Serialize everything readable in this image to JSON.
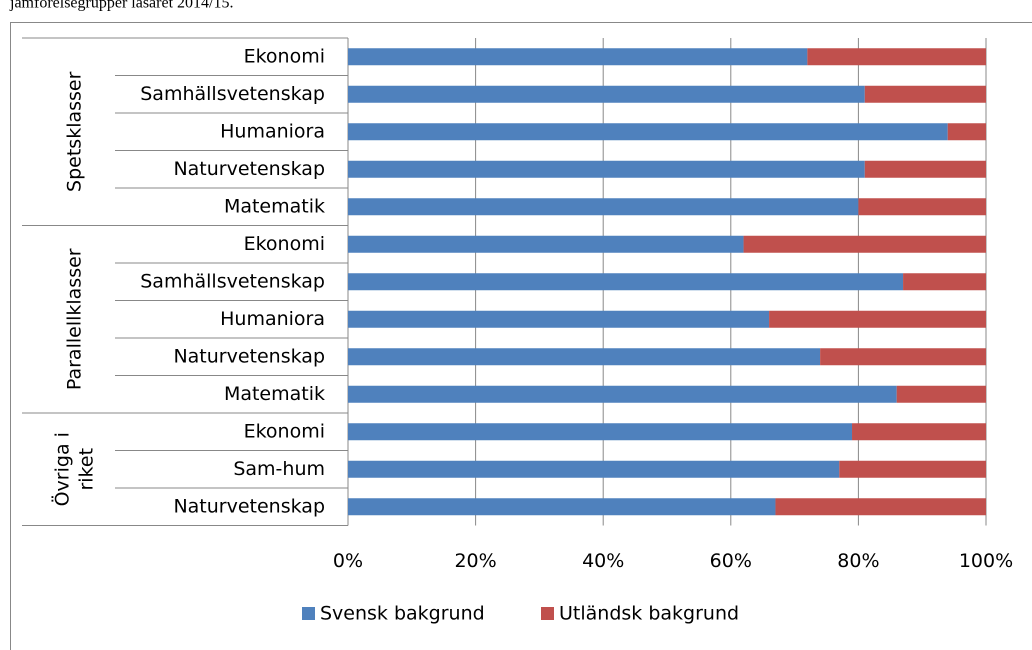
{
  "chart_data": {
    "type": "stacked_bar_horizontal",
    "title": "jämförelsegrupper läsåret 2014/15.",
    "groups": [
      {
        "label": [
          "Spetsklasser"
        ],
        "categories": [
          "Ekonomi",
          "Samhällsvetenskap",
          "Humaniora",
          "Naturvetenskap",
          "Matematik"
        ]
      },
      {
        "label": [
          "Parallellklasser"
        ],
        "categories": [
          "Ekonomi",
          "Samhällsvetenskap",
          "Humaniora",
          "Naturvetenskap",
          "Matematik"
        ]
      },
      {
        "label": [
          "Övriga i",
          "riket"
        ],
        "categories": [
          "Ekonomi",
          "Sam-hum",
          "Naturvetenskap"
        ]
      }
    ],
    "series": [
      {
        "name": "Svensk bakgrund",
        "color": "#4f81bd",
        "values": [
          72,
          81,
          94,
          81,
          80,
          62,
          87,
          66,
          74,
          86,
          79,
          77,
          67
        ]
      },
      {
        "name": "Utländsk bakgrund",
        "color": "#c0504d",
        "values": [
          28,
          19,
          6,
          19,
          20,
          38,
          13,
          34,
          26,
          14,
          21,
          23,
          33
        ]
      }
    ],
    "xlim": [
      0,
      100
    ],
    "xticks": [
      {
        "value": 0,
        "label": "0%"
      },
      {
        "value": 20,
        "label": "20%"
      },
      {
        "value": 40,
        "label": "40%"
      },
      {
        "value": 60,
        "label": "60%"
      },
      {
        "value": 80,
        "label": "80%"
      },
      {
        "value": 100,
        "label": "100%"
      }
    ],
    "grid": true,
    "legend": "bottom"
  }
}
